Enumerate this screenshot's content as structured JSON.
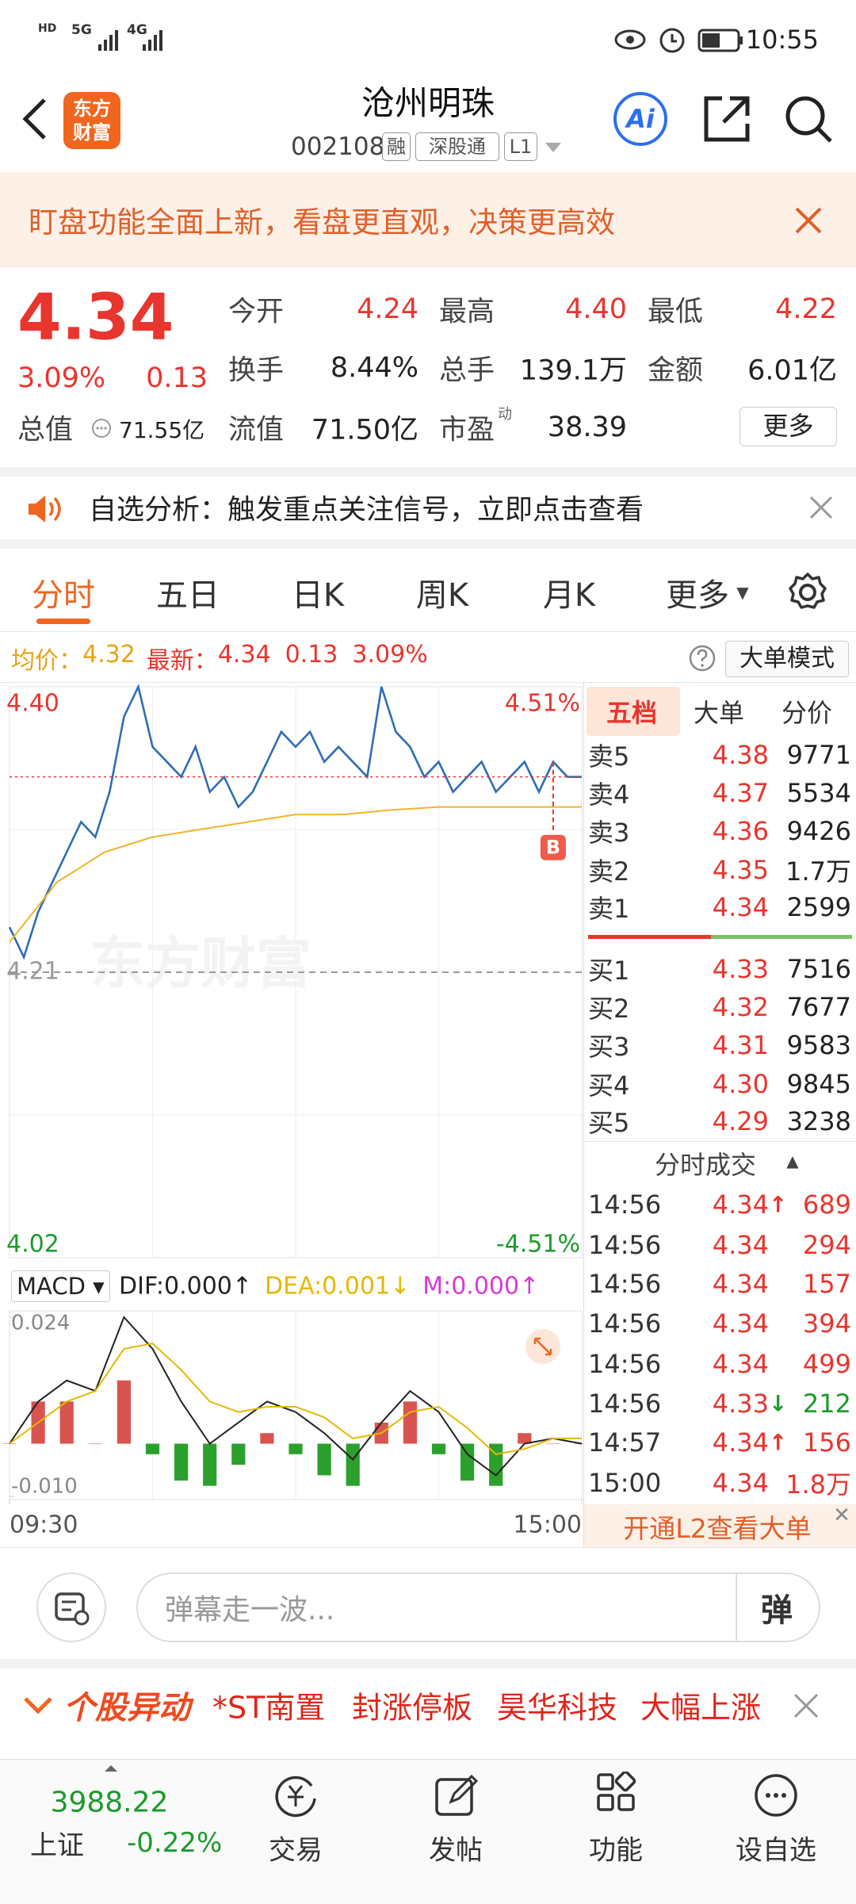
{
  "status_bar": {
    "network1": "5G",
    "network2": "4G",
    "time": "10:55"
  },
  "header": {
    "logo": [
      "东方",
      "财富"
    ],
    "title": "沧州明珠",
    "code": "002108",
    "tags": [
      "融",
      "深股通",
      "L1"
    ],
    "ai": "Ai"
  },
  "banner": {
    "text": "盯盘功能全面上新，看盘更直观，决策更高效"
  },
  "quote": {
    "price": "4.34",
    "change_pct": "3.09%",
    "change": "0.13",
    "total_value_label": "总值",
    "total_value": "71.55亿",
    "fields": [
      {
        "label": "今开",
        "value": "4.24"
      },
      {
        "label": "最高",
        "value": "4.40"
      },
      {
        "label": "最低",
        "value": "4.22"
      },
      {
        "label": "换手",
        "value": "8.44%"
      },
      {
        "label": "总手",
        "value": "139.1万"
      },
      {
        "label": "金额",
        "value": "6.01亿"
      },
      {
        "label": "流值",
        "value": "71.50亿"
      },
      {
        "label": "市盈",
        "sup": "动",
        "value": "38.39"
      }
    ],
    "more": "更多"
  },
  "notice": {
    "text": "自选分析：触发重点关注信号，立即点击查看"
  },
  "tabs": [
    "分时",
    "五日",
    "日K",
    "周K",
    "月K",
    "更多"
  ],
  "summary": {
    "avg_label": "均价：",
    "avg": "4.32",
    "latest_label": "最新：",
    "latest": "4.34",
    "change": "0.13",
    "change_pct": "3.09%",
    "mode": "大单模式"
  },
  "chart_data": [
    {
      "type": "line",
      "ylim": [
        4.02,
        4.4
      ],
      "yticks": [
        4.02,
        4.21,
        {
          "value": 4.4,
          "label": "4.40"
        }
      ],
      "y2lim": [
        -4.51,
        4.51
      ],
      "y2ticks": [
        {
          "value": -4.51,
          "label": "-4.51%"
        },
        {
          "value": 4.51,
          "label": "4.51%"
        }
      ],
      "xlim": [
        0,
        240
      ],
      "watermark": "东方财富",
      "annotation": "B",
      "series": [
        {
          "color": "#2f6db5",
          "x": [
            0,
            6,
            12,
            18,
            24,
            30,
            36,
            42,
            48,
            54,
            60,
            66,
            72,
            78,
            84,
            90,
            96,
            102,
            108,
            114,
            120,
            126,
            132,
            138,
            144,
            150,
            156,
            162,
            168,
            174,
            180,
            186,
            192,
            198,
            204,
            210,
            216,
            222,
            228,
            234,
            240
          ],
          "values": [
            4.24,
            4.22,
            4.25,
            4.27,
            4.29,
            4.31,
            4.3,
            4.33,
            4.38,
            4.4,
            4.36,
            4.35,
            4.34,
            4.36,
            4.33,
            4.34,
            4.32,
            4.33,
            4.35,
            4.37,
            4.36,
            4.37,
            4.35,
            4.36,
            4.35,
            4.34,
            4.4,
            4.37,
            4.36,
            4.34,
            4.35,
            4.33,
            4.34,
            4.35,
            4.33,
            4.34,
            4.35,
            4.33,
            4.35,
            4.34,
            4.34
          ]
        },
        {
          "color": "#f0b429",
          "x": [
            0,
            20,
            40,
            60,
            80,
            100,
            120,
            140,
            160,
            180,
            200,
            220,
            240
          ],
          "values": [
            4.23,
            4.27,
            4.29,
            4.3,
            4.305,
            4.31,
            4.315,
            4.315,
            4.318,
            4.32,
            4.32,
            4.32,
            4.32
          ]
        }
      ]
    },
    {
      "type": "macd",
      "indicator": "MACD",
      "ylim": [
        -0.01,
        0.024
      ],
      "yticks": [
        {
          "value": -0.01,
          "label": "-0.010"
        },
        0.024
      ],
      "xlim": [
        0,
        240
      ],
      "xticks": [
        {
          "value": 0,
          "label": "09:30"
        },
        {
          "value": 240,
          "label": "15:00"
        }
      ],
      "series": [
        {
          "name": "DIF:0.000",
          "arrow": "↑",
          "color": "#222222",
          "x": [
            0,
            12,
            24,
            36,
            48,
            60,
            72,
            84,
            96,
            108,
            120,
            132,
            144,
            156,
            168,
            180,
            192,
            204,
            216,
            228,
            240
          ],
          "values": [
            0,
            0.008,
            0.012,
            0.01,
            0.024,
            0.018,
            0.008,
            0,
            0.004,
            0.008,
            0.006,
            0.002,
            -0.003,
            0.004,
            0.01,
            0.006,
            -0.002,
            -0.006,
            0,
            0.001,
            0
          ]
        },
        {
          "name": "DEA:0.001",
          "arrow": "↓",
          "color": "#e6b800",
          "x": [
            0,
            12,
            24,
            36,
            48,
            60,
            72,
            84,
            96,
            108,
            120,
            132,
            144,
            156,
            168,
            180,
            192,
            204,
            216,
            228,
            240
          ],
          "values": [
            0,
            0.004,
            0.008,
            0.01,
            0.018,
            0.019,
            0.014,
            0.008,
            0.006,
            0.007,
            0.007,
            0.005,
            0.001,
            0.002,
            0.006,
            0.007,
            0.003,
            -0.002,
            -0.001,
            0.001,
            0.001
          ]
        },
        {
          "name": "M:0.000",
          "arrow": "↑",
          "color": "#d63ad6",
          "up_color": "#d9534f",
          "down_color": "#2ca02c",
          "x": [
            0,
            12,
            24,
            36,
            48,
            60,
            72,
            84,
            96,
            108,
            120,
            132,
            144,
            156,
            168,
            180,
            192,
            204,
            216,
            228,
            240
          ],
          "values": [
            0,
            0.008,
            0.008,
            0,
            0.012,
            -0.002,
            -0.007,
            -0.008,
            -0.004,
            0.002,
            -0.002,
            -0.006,
            -0.008,
            0.004,
            0.008,
            -0.002,
            -0.007,
            -0.008,
            0.002,
            0,
            0
          ]
        }
      ]
    }
  ],
  "order_book": {
    "tabs": [
      "五档",
      "大单",
      "分价"
    ],
    "sell": [
      {
        "label": "卖5",
        "price": "4.38",
        "volume": "9771"
      },
      {
        "label": "卖4",
        "price": "4.37",
        "volume": "5534"
      },
      {
        "label": "卖3",
        "price": "4.36",
        "volume": "9426"
      },
      {
        "label": "卖2",
        "price": "4.35",
        "volume": "1.7万"
      },
      {
        "label": "卖1",
        "price": "4.34",
        "volume": "2599"
      }
    ],
    "buy": [
      {
        "label": "买1",
        "price": "4.33",
        "volume": "7516"
      },
      {
        "label": "买2",
        "price": "4.32",
        "volume": "7677"
      },
      {
        "label": "买3",
        "price": "4.31",
        "volume": "9583"
      },
      {
        "label": "买4",
        "price": "4.30",
        "volume": "9845"
      },
      {
        "label": "买5",
        "price": "4.29",
        "volume": "3238"
      }
    ],
    "trades_title": "分时成交",
    "trades": [
      {
        "time": "14:56",
        "price": "4.34",
        "arrow": "↑",
        "volume": "689"
      },
      {
        "time": "14:56",
        "price": "4.34",
        "volume": "294"
      },
      {
        "time": "14:56",
        "price": "4.34",
        "volume": "157"
      },
      {
        "time": "14:56",
        "price": "4.34",
        "volume": "394"
      },
      {
        "time": "14:56",
        "price": "4.34",
        "volume": "499"
      },
      {
        "time": "14:56",
        "price": "4.33",
        "arrow": "↓",
        "volume": "212"
      },
      {
        "time": "14:57",
        "price": "4.34",
        "arrow": "↑",
        "volume": "156"
      },
      {
        "time": "15:00",
        "price": "4.34",
        "volume": "1.8万"
      }
    ],
    "l2": "开通L2查看大单"
  },
  "comment_bar": {
    "placeholder": "弹幕走一波...",
    "button": "弹"
  },
  "alert": {
    "title": "个股异动",
    "items": [
      "*ST南置",
      "封涨停板",
      "昊华科技",
      "大幅上涨"
    ]
  },
  "bottom_nav": {
    "index_value": "3988.22",
    "index_name": "上证",
    "index_change": "-0.22%",
    "items": [
      "交易",
      "发帖",
      "功能",
      "设自选"
    ]
  }
}
